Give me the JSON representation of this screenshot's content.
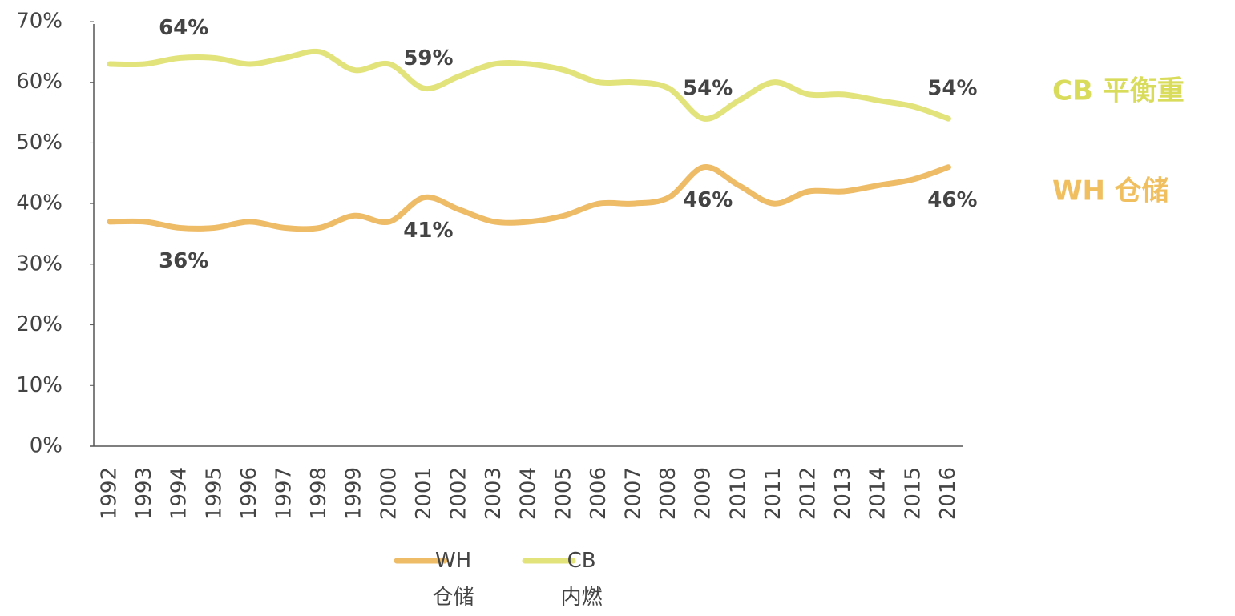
{
  "chart_data": {
    "type": "line",
    "categories": [
      "1992",
      "1993",
      "1994",
      "1995",
      "1996",
      "1997",
      "1998",
      "1999",
      "2000",
      "2001",
      "2002",
      "2003",
      "2004",
      "2005",
      "2006",
      "2007",
      "2008",
      "2009",
      "2010",
      "2011",
      "2012",
      "2013",
      "2014",
      "2015",
      "2016"
    ],
    "series": [
      {
        "name": "WH\n仓储",
        "color": "#eebb66",
        "values": [
          37,
          37,
          36,
          36,
          37,
          36,
          36,
          38,
          37,
          41,
          39,
          37,
          37,
          38,
          40,
          40,
          41,
          46,
          43,
          40,
          42,
          42,
          43,
          44,
          46
        ],
        "value_labels": [
          null,
          null,
          "36%",
          null,
          null,
          null,
          null,
          null,
          null,
          "41%",
          null,
          null,
          null,
          null,
          null,
          null,
          null,
          "46%",
          null,
          null,
          null,
          null,
          null,
          null,
          "46%"
        ]
      },
      {
        "name": "CB\n内燃",
        "color": "#e2e37a",
        "values": [
          63,
          63,
          64,
          64,
          63,
          64,
          65,
          62,
          63,
          59,
          61,
          63,
          63,
          62,
          60,
          60,
          59,
          54,
          57,
          60,
          58,
          58,
          57,
          56,
          54
        ],
        "value_labels": [
          null,
          null,
          "64%",
          null,
          null,
          null,
          null,
          null,
          null,
          "59%",
          null,
          null,
          null,
          null,
          null,
          null,
          null,
          "54%",
          null,
          null,
          null,
          null,
          null,
          null,
          "54%"
        ]
      }
    ],
    "annotations": [
      {
        "text": "CB 平衡重",
        "color": "#d9dc5a"
      },
      {
        "text": "WH 仓储",
        "color": "#f0c060"
      }
    ],
    "ylim": [
      0,
      70
    ],
    "yticks": [
      {
        "value": 0,
        "label": "0%"
      },
      {
        "value": 10,
        "label": "10%"
      },
      {
        "value": 20,
        "label": "20%"
      },
      {
        "value": 30,
        "label": "30%"
      },
      {
        "value": 40,
        "label": "40%"
      },
      {
        "value": 50,
        "label": "50%"
      },
      {
        "value": 60,
        "label": "60%"
      },
      {
        "value": 70,
        "label": "70%"
      }
    ],
    "grid": false
  }
}
